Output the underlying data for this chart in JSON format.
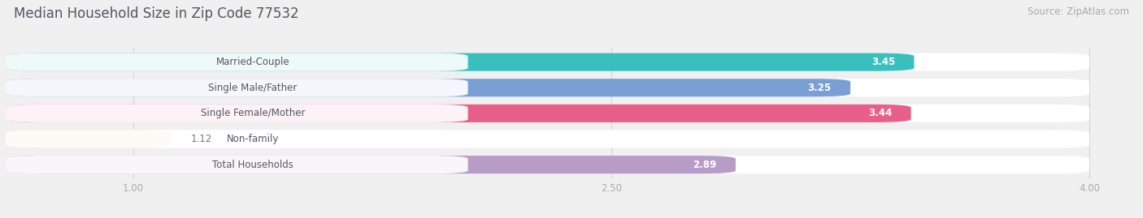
{
  "title": "Median Household Size in Zip Code 77532",
  "source": "Source: ZipAtlas.com",
  "categories": [
    "Married-Couple",
    "Single Male/Father",
    "Single Female/Mother",
    "Non-family",
    "Total Households"
  ],
  "values": [
    3.45,
    3.25,
    3.44,
    1.12,
    2.89
  ],
  "bar_colors": [
    "#3abfbf",
    "#7a9fd4",
    "#e8608a",
    "#f5cfa0",
    "#b89cc8"
  ],
  "xlim_data": [
    0,
    4.0
  ],
  "xlim_display": [
    0.6,
    4.15
  ],
  "xticks": [
    1.0,
    2.5,
    4.0
  ],
  "value_label_color_inside": "#ffffff",
  "value_label_color_outside": "#777777",
  "background_color": "#f0f0f0",
  "bar_bg_color": "#ffffff",
  "title_fontsize": 12,
  "source_fontsize": 8.5,
  "label_fontsize": 8.5,
  "value_fontsize": 8.5,
  "title_color": "#555566",
  "source_color": "#aaaaaa",
  "label_text_color": "#555566",
  "tick_color": "#aaaaaa"
}
